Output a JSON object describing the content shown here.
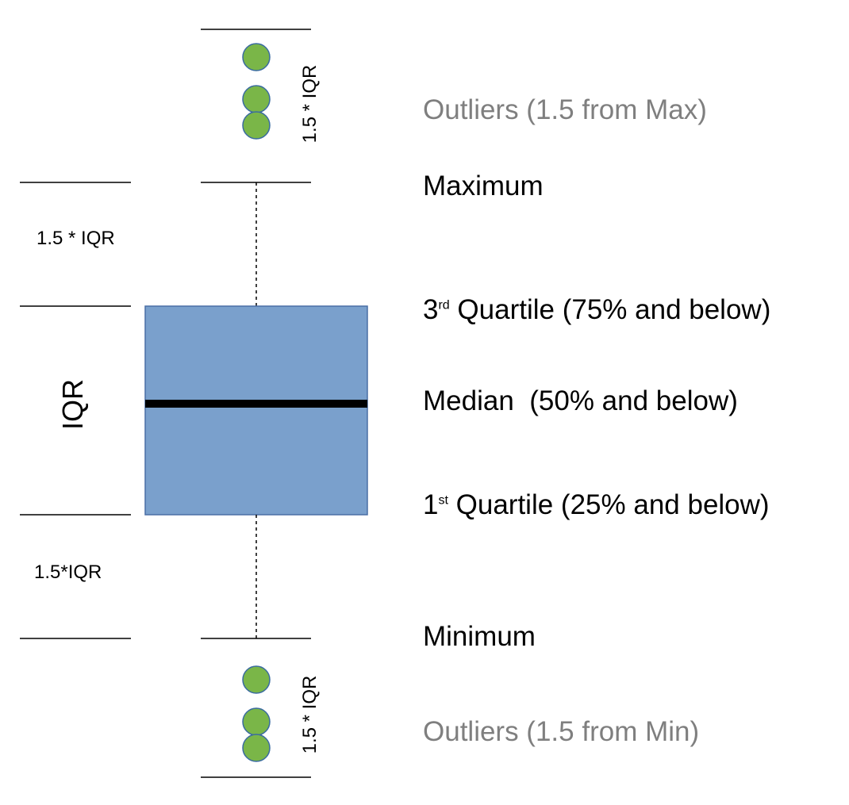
{
  "colors": {
    "box_fill": "#7aa0cc",
    "box_stroke": "#4a6fa5",
    "outlier_fill": "#7ab648",
    "outlier_stroke": "#3a6ba0",
    "line": "#000000",
    "muted_text": "#7f7f7f",
    "text": "#000000"
  },
  "labels": {
    "outliers_max": "Outliers (1.5 from Max)",
    "maximum": "Maximum",
    "q3_ordinal": "3",
    "q3_suffix": "rd",
    "q3_text": " Quartile (75% and below)",
    "median": "Median  (50% and below)",
    "q1_ordinal": "1",
    "q1_suffix": "st",
    "q1_text": " Quartile (25% and below)",
    "minimum": "Minimum",
    "outliers_min": "Outliers (1.5 from Min)",
    "left_upper_span": "1.5 * IQR",
    "left_iqr": "IQR",
    "left_lower_span": "1.5*IQR",
    "rot_upper_span": "1.5 * IQR",
    "rot_lower_span": "1.5 * IQR"
  },
  "icons": {
    "outlier_marker": "green-circle-icon"
  }
}
